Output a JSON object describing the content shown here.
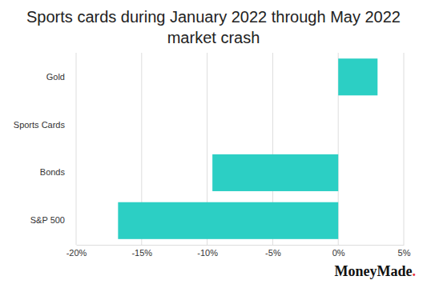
{
  "chart_data": {
    "type": "bar",
    "orientation": "horizontal",
    "title": "Sports cards during January 2022 through May 2022 market crash",
    "categories": [
      "Gold",
      "Sports Cards",
      "Bonds",
      "S&P 500"
    ],
    "values": [
      3,
      0,
      -9.6,
      -16.8
    ],
    "color": "#2ccfc4",
    "xlim": [
      -20,
      5
    ],
    "xticks": [
      {
        "value": -20,
        "label": "-20%"
      },
      {
        "value": -15,
        "label": "-15%"
      },
      {
        "value": -10,
        "label": "-10%"
      },
      {
        "value": -5,
        "label": "-5%"
      },
      {
        "value": 0,
        "label": "0%"
      },
      {
        "value": 5,
        "label": "5%"
      }
    ],
    "grid": true,
    "annotations": [
      "MoneyMade."
    ]
  }
}
